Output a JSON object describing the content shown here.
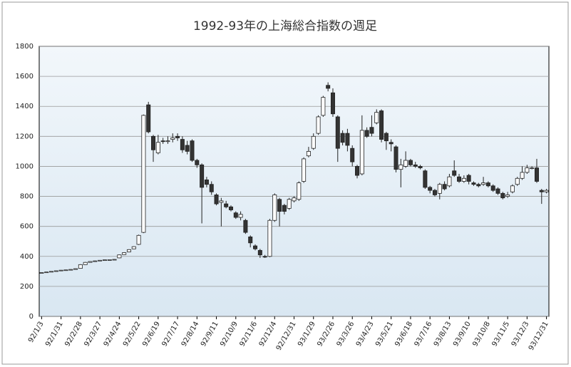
{
  "chart_data": {
    "type": "candlestick",
    "title": "1992-93年の上海総合指数の週足",
    "categories": [
      "92/1/3",
      null,
      null,
      null,
      "92/1/31",
      null,
      null,
      null,
      "92/2/28",
      null,
      null,
      null,
      "92/3/27",
      null,
      null,
      null,
      "92/4/24",
      null,
      null,
      null,
      "92/5/22",
      null,
      null,
      null,
      "92/6/19",
      null,
      null,
      null,
      "92/7/17",
      null,
      null,
      null,
      "92/8/14",
      null,
      null,
      null,
      "92/9/11",
      null,
      null,
      null,
      "92/10/9",
      null,
      null,
      null,
      "92/11/6",
      null,
      null,
      null,
      "92/12/4",
      null,
      null,
      null,
      "92/12/31",
      null,
      null,
      null,
      "93/1/29",
      null,
      null,
      null,
      "93/2/26",
      null,
      null,
      null,
      "93/3/26",
      null,
      null,
      null,
      "93/4/23",
      null,
      null,
      null,
      "93/5/21",
      null,
      null,
      null,
      "93/6/18",
      null,
      null,
      null,
      "93/7/16",
      null,
      null,
      null,
      "93/8/13",
      null,
      null,
      null,
      "93/9/10",
      null,
      null,
      null,
      "93/10/8",
      null,
      null,
      null,
      "93/11/5",
      null,
      null,
      null,
      "93/12/3",
      null,
      null,
      null,
      "93/12/31"
    ],
    "open": [
      290,
      292,
      296,
      300,
      304,
      308,
      310,
      313,
      320,
      345,
      360,
      366,
      370,
      374,
      377,
      378,
      390,
      412,
      430,
      450,
      480,
      560,
      1410,
      1200,
      1090,
      1170,
      1165,
      1180,
      1200,
      1180,
      1140,
      1170,
      1040,
      1010,
      910,
      880,
      810,
      760,
      750,
      730,
      690,
      660,
      640,
      530,
      470,
      440,
      400,
      400,
      640,
      780,
      740,
      720,
      770,
      780,
      900,
      1070,
      1120,
      1220,
      1340,
      1540,
      1490,
      1330,
      1220,
      1220,
      1120,
      1000,
      950,
      1240,
      1260,
      1290,
      1370,
      1220,
      1160,
      1130,
      980,
      1000,
      1040,
      1010,
      1000,
      970,
      860,
      840,
      820,
      880,
      870,
      970,
      930,
      900,
      940,
      890,
      880,
      880,
      890,
      870,
      850,
      820,
      800,
      830,
      880,
      920,
      960,
      990,
      990,
      840,
      830
    ],
    "close": [
      292,
      296,
      300,
      304,
      308,
      310,
      313,
      318,
      345,
      360,
      366,
      370,
      374,
      377,
      378,
      380,
      410,
      425,
      445,
      465,
      540,
      1340,
      1230,
      1110,
      1160,
      1165,
      1170,
      1190,
      1190,
      1110,
      1100,
      1040,
      1010,
      860,
      880,
      830,
      750,
      770,
      730,
      710,
      660,
      680,
      560,
      490,
      450,
      410,
      395,
      640,
      810,
      700,
      700,
      780,
      790,
      890,
      1050,
      1100,
      1200,
      1330,
      1460,
      1520,
      1350,
      1120,
      1160,
      1140,
      1030,
      940,
      1240,
      1200,
      1220,
      1360,
      1180,
      1170,
      1150,
      980,
      1010,
      1040,
      1010,
      1000,
      990,
      860,
      840,
      810,
      880,
      850,
      930,
      940,
      900,
      920,
      900,
      880,
      870,
      890,
      870,
      840,
      820,
      790,
      810,
      870,
      920,
      960,
      990,
      990,
      900,
      830,
      840
    ],
    "high": [
      293,
      297,
      301,
      305,
      309,
      311,
      314,
      319,
      348,
      363,
      368,
      372,
      375,
      378,
      379,
      382,
      412,
      428,
      448,
      468,
      545,
      1345,
      1430,
      1210,
      1210,
      1190,
      1200,
      1220,
      1220,
      1200,
      1170,
      1180,
      1050,
      1020,
      930,
      900,
      820,
      790,
      770,
      740,
      700,
      700,
      650,
      540,
      480,
      450,
      410,
      650,
      820,
      790,
      750,
      790,
      800,
      900,
      1060,
      1130,
      1220,
      1340,
      1470,
      1560,
      1520,
      1340,
      1240,
      1250,
      1140,
      1010,
      1340,
      1260,
      1340,
      1380,
      1380,
      1230,
      1180,
      1140,
      1050,
      1100,
      1050,
      1030,
      1010,
      980,
      870,
      850,
      890,
      900,
      950,
      1040,
      950,
      940,
      950,
      900,
      890,
      930,
      900,
      880,
      860,
      830,
      830,
      880,
      930,
      1000,
      1010,
      1000,
      1050,
      850,
      850
    ],
    "low": [
      289,
      291,
      295,
      299,
      303,
      307,
      309,
      312,
      318,
      344,
      359,
      365,
      369,
      373,
      376,
      377,
      388,
      410,
      428,
      448,
      476,
      555,
      1220,
      1030,
      1080,
      1150,
      1150,
      1160,
      1170,
      1090,
      1080,
      1030,
      990,
      620,
      860,
      810,
      740,
      600,
      720,
      700,
      650,
      640,
      550,
      460,
      440,
      390,
      390,
      395,
      630,
      600,
      680,
      710,
      760,
      770,
      890,
      1060,
      1110,
      1210,
      1330,
      1500,
      1330,
      1030,
      1140,
      1100,
      1000,
      920,
      940,
      1190,
      1200,
      1280,
      1160,
      1110,
      1100,
      960,
      860,
      990,
      1000,
      990,
      980,
      850,
      820,
      800,
      780,
      840,
      860,
      930,
      890,
      890,
      880,
      870,
      860,
      870,
      860,
      830,
      810,
      780,
      790,
      820,
      870,
      910,
      950,
      980,
      890,
      750,
      820
    ],
    "up_color": "#ffffff",
    "down_color": "#333333",
    "ylim": [
      0,
      1800
    ],
    "yticks": [
      0,
      200,
      400,
      600,
      800,
      1000,
      1200,
      1400,
      1600,
      1800
    ],
    "grid": true
  }
}
